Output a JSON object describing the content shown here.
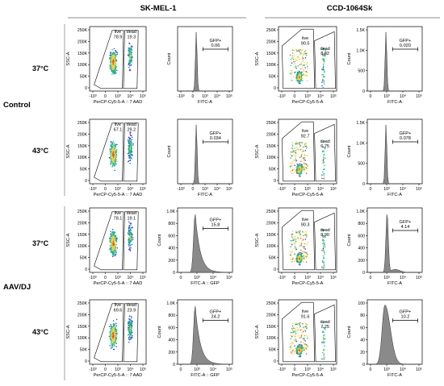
{
  "columns": [
    {
      "label": "SK-MEL-1"
    },
    {
      "label": "CCD-1064Sk"
    }
  ],
  "groups": [
    {
      "label": "Control"
    },
    {
      "label": "AAV/DJ"
    }
  ],
  "temps": [
    "37°C",
    "43°C",
    "37°C",
    "43°C"
  ],
  "colors": {
    "histogram_fill": "#8a8a8a",
    "density_low": "#2a3fd6",
    "density_mid": "#1fb58a",
    "density_high": "#e6d24a",
    "density_peak": "#e8501e"
  },
  "chart_data": [
    {
      "type": "scatter",
      "row": 0,
      "cell": "SK-MEL-1",
      "x_label": "PerCP-Cy5-5-A :: 7 AAD",
      "y_label": "SSC-A",
      "y_ticks": [
        "250K",
        "200K",
        "150K",
        "100K",
        "50K",
        "0"
      ],
      "x_ticks": [
        "-10³",
        "0",
        "10³",
        "10⁴",
        "10⁵"
      ],
      "gates": [
        {
          "name": "live",
          "value": "78.9"
        },
        {
          "name": "dead",
          "value": "19.3"
        }
      ]
    },
    {
      "type": "area",
      "row": 0,
      "cell": "SK-MEL-1",
      "x_label": "FITC-A",
      "y_label": "Count",
      "y_ticks": [],
      "x_ticks": [
        "-10³",
        "0",
        "10³",
        "10⁴",
        "10⁵"
      ],
      "gate": {
        "name": "GFP+",
        "value": "0.06"
      }
    },
    {
      "type": "scatter",
      "row": 0,
      "cell": "CCD-1064Sk",
      "x_label": "PerCP-Cy5-5-A",
      "y_label": "SSC-A",
      "y_ticks": [
        "250K",
        "200K",
        "150K",
        "100K",
        "50K",
        "0"
      ],
      "x_ticks": [
        "-10³",
        "0",
        "10³",
        "10⁴",
        "10⁵"
      ],
      "gates": [
        {
          "name": "live",
          "value": "90.5"
        },
        {
          "name": "dead",
          "value": "8.82"
        }
      ]
    },
    {
      "type": "area",
      "row": 0,
      "cell": "CCD-1064Sk",
      "x_label": "FITC-A",
      "y_label": "Count",
      "y_ticks": [
        "1.5K",
        "1.0K",
        "500",
        "0"
      ],
      "x_ticks": [
        "0",
        "10³",
        "10⁴",
        "10⁵"
      ],
      "gate": {
        "name": "GFP+",
        "value": "0.020"
      }
    },
    {
      "type": "scatter",
      "row": 1,
      "cell": "SK-MEL-1",
      "x_label": "PerCP-Cy5-5-A :: 7 AAD",
      "y_label": "SSC-A",
      "y_ticks": [
        "250K",
        "200K",
        "150K",
        "100K",
        "50K",
        "0"
      ],
      "x_ticks": [
        "-10³",
        "0",
        "10³",
        "10⁴",
        "10⁵"
      ],
      "gates": [
        {
          "name": "live",
          "value": "67.1"
        },
        {
          "name": "dead",
          "value": "29.2"
        }
      ]
    },
    {
      "type": "area",
      "row": 1,
      "cell": "SK-MEL-1",
      "x_label": "FITC-A",
      "y_label": "Count",
      "y_ticks": [],
      "x_ticks": [
        "-10³",
        "0",
        "10³",
        "10⁴",
        "10⁵"
      ],
      "gate": {
        "name": "GFP+",
        "value": "0.034"
      }
    },
    {
      "type": "scatter",
      "row": 1,
      "cell": "CCD-1064Sk",
      "x_label": "PerCP-Cy5-5-A",
      "y_label": "SSC-A",
      "y_ticks": [
        "250K",
        "200K",
        "150K",
        "100K",
        "50K",
        "0"
      ],
      "x_ticks": [
        "-10³",
        "0",
        "10³",
        "10⁴",
        "10⁵"
      ],
      "gates": [
        {
          "name": "live",
          "value": "92.7"
        },
        {
          "name": "dead",
          "value": "6.75"
        }
      ]
    },
    {
      "type": "area",
      "row": 1,
      "cell": "CCD-1064Sk",
      "x_label": "FITC-A",
      "y_label": "Count",
      "y_ticks": [
        "1.5K",
        "1.0K",
        "500",
        "0"
      ],
      "x_ticks": [
        "0",
        "10³",
        "10⁴",
        "10⁵"
      ],
      "gate": {
        "name": "GFP+",
        "value": "0.078"
      }
    },
    {
      "type": "scatter",
      "row": 2,
      "cell": "SK-MEL-1",
      "x_label": "PerCP-Cy5-5-A :: 7 AAD",
      "y_label": "SSC-A",
      "y_ticks": [
        "250K",
        "200K",
        "150K",
        "100K",
        "50K",
        "0"
      ],
      "x_ticks": [
        "-10³",
        "0",
        "10³",
        "10⁴",
        "10⁵"
      ],
      "gates": [
        {
          "name": "live",
          "value": "78.1"
        },
        {
          "name": "dead",
          "value": "19.1"
        }
      ]
    },
    {
      "type": "area",
      "row": 2,
      "cell": "SK-MEL-1",
      "x_label": "FITC-A :: GFP",
      "y_label": "Count",
      "y_ticks": [
        "1.0K",
        "800",
        "600",
        "400",
        "200",
        "0"
      ],
      "x_ticks": [
        "0",
        "10³",
        "10⁴",
        "10⁵"
      ],
      "gate": {
        "name": "GFP+",
        "value": "15.8"
      }
    },
    {
      "type": "scatter",
      "row": 2,
      "cell": "CCD-1064Sk",
      "x_label": "PerCP-Cy5-5-A",
      "y_label": "SSC-A",
      "y_ticks": [
        "250K",
        "200K",
        "150K",
        "100K",
        "50K",
        "0"
      ],
      "x_ticks": [
        "-10³",
        "0",
        "10³",
        "10⁴",
        "10⁵"
      ],
      "gates": [
        {
          "name": "live",
          "value": "90.3"
        },
        {
          "name": "dead",
          "value": "8.90"
        }
      ]
    },
    {
      "type": "area",
      "row": 2,
      "cell": "CCD-1064Sk",
      "x_label": "FITC-A",
      "y_label": "Count",
      "y_ticks": [
        "1.0K",
        "800",
        "600",
        "400",
        "200",
        "0"
      ],
      "x_ticks": [
        "0",
        "10³",
        "10⁴",
        "10⁵"
      ],
      "gate": {
        "name": "GFP+",
        "value": "4.14"
      }
    },
    {
      "type": "scatter",
      "row": 3,
      "cell": "SK-MEL-1",
      "x_label": "PerCP-Cy5-5-A :: 7 AAD",
      "y_label": "SSC-A",
      "y_ticks": [
        "250K",
        "200K",
        "150K",
        "100K",
        "50K",
        "0"
      ],
      "x_ticks": [
        "-10³",
        "0",
        "10³",
        "10⁴",
        "10⁵"
      ],
      "gates": [
        {
          "name": "live",
          "value": "69.6"
        },
        {
          "name": "dead",
          "value": "23.9"
        }
      ]
    },
    {
      "type": "area",
      "row": 3,
      "cell": "SK-MEL-1",
      "x_label": "FITC-A :: GFP",
      "y_label": "Count",
      "y_ticks": [
        "1.0K",
        "800",
        "600",
        "400",
        "200",
        "0"
      ],
      "x_ticks": [
        "0",
        "10³",
        "10⁴",
        "10⁵"
      ],
      "gate": {
        "name": "GFP+",
        "value": "24.2"
      }
    },
    {
      "type": "scatter",
      "row": 3,
      "cell": "CCD-1064Sk",
      "x_label": "PerCP-Cy5-5-A",
      "y_label": "SSC-A",
      "y_ticks": [
        "250K",
        "200K",
        "150K",
        "100K",
        "50K",
        "0"
      ],
      "x_ticks": [
        "-10³",
        "0",
        "10³",
        "10⁴",
        "10⁵"
      ],
      "gates": [
        {
          "name": "live",
          "value": "91.6"
        },
        {
          "name": "dead",
          "value": "7.25"
        }
      ]
    },
    {
      "type": "area",
      "row": 3,
      "cell": "CCD-1064Sk",
      "x_label": "FITC-A",
      "y_label": "Count",
      "y_ticks": [
        "100",
        "80",
        "60",
        "40",
        "20",
        "0"
      ],
      "x_ticks": [
        "0",
        "10³",
        "10⁴",
        "10⁵"
      ],
      "gate": {
        "name": "GFP+",
        "value": "10.2"
      }
    }
  ]
}
